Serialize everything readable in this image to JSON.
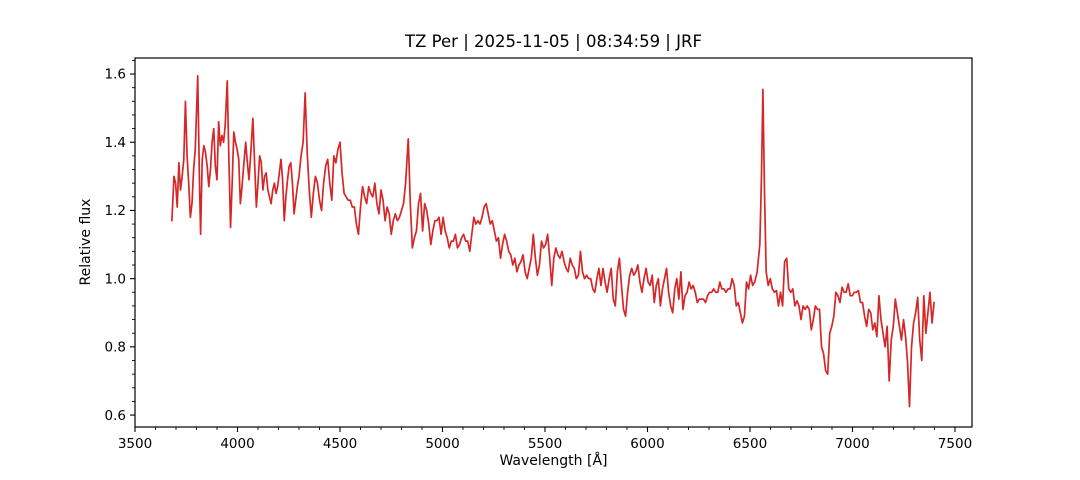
{
  "title": "TZ Per | 2025-11-05 | 08:34:59 | JRF",
  "chart_data": {
    "type": "line",
    "title": "TZ Per | 2025-11-05 | 08:34:59 | JRF",
    "xlabel": "Wavelength [Å]",
    "ylabel": "Relative flux",
    "xlim": [
      3500,
      7583
    ],
    "ylim": [
      0.565,
      1.647
    ],
    "x_major_ticks": [
      3500,
      4000,
      4500,
      5000,
      5500,
      6000,
      6500,
      7000,
      7500
    ],
    "x_tick_labels": [
      "3500",
      "4000",
      "4500",
      "5000",
      "5500",
      "6000",
      "6500",
      "7000",
      "7500"
    ],
    "x_minor_step": 100,
    "y_major_ticks": [
      0.6,
      0.8,
      1.0,
      1.2,
      1.4,
      1.6
    ],
    "y_tick_labels": [
      "0.6",
      "0.8",
      "1.0",
      "1.2",
      "1.4",
      "1.6"
    ],
    "y_minor_step": 0.04,
    "grid": false,
    "legend": null,
    "line_color": "#d62728",
    "background_color": "#ffffff",
    "spine_color": "#000000",
    "series": [
      {
        "name": "relative_flux",
        "x": [
          3680,
          3690,
          3698,
          3706,
          3714,
          3722,
          3730,
          3738,
          3746,
          3754,
          3762,
          3770,
          3778,
          3786,
          3794,
          3806,
          3814,
          3820,
          3828,
          3836,
          3844,
          3852,
          3860,
          3868,
          3876,
          3884,
          3892,
          3900,
          3908,
          3916,
          3924,
          3932,
          3940,
          3950,
          3958,
          3966,
          3974,
          3982,
          3990,
          3998,
          4006,
          4014,
          4022,
          4030,
          4040,
          4048,
          4056,
          4066,
          4075,
          4084,
          4092,
          4100,
          4108,
          4116,
          4124,
          4132,
          4140,
          4148,
          4156,
          4164,
          4172,
          4180,
          4188,
          4196,
          4204,
          4212,
          4220,
          4228,
          4236,
          4244,
          4252,
          4260,
          4268,
          4276,
          4284,
          4292,
          4300,
          4310,
          4320,
          4330,
          4340,
          4350,
          4360,
          4370,
          4380,
          4390,
          4400,
          4410,
          4420,
          4430,
          4440,
          4450,
          4460,
          4470,
          4480,
          4490,
          4500,
          4510,
          4520,
          4530,
          4540,
          4550,
          4560,
          4570,
          4580,
          4590,
          4600,
          4610,
          4620,
          4630,
          4640,
          4650,
          4660,
          4670,
          4680,
          4690,
          4700,
          4710,
          4720,
          4730,
          4740,
          4750,
          4760,
          4770,
          4780,
          4790,
          4800,
          4810,
          4820,
          4833,
          4843,
          4853,
          4863,
          4873,
          4883,
          4893,
          4903,
          4913,
          4923,
          4933,
          4943,
          4953,
          4963,
          4973,
          4983,
          4993,
          5003,
          5013,
          5023,
          5033,
          5043,
          5053,
          5063,
          5073,
          5083,
          5093,
          5103,
          5113,
          5123,
          5133,
          5143,
          5153,
          5163,
          5173,
          5183,
          5193,
          5203,
          5213,
          5223,
          5233,
          5243,
          5253,
          5263,
          5273,
          5283,
          5293,
          5303,
          5313,
          5323,
          5333,
          5343,
          5353,
          5363,
          5373,
          5383,
          5393,
          5403,
          5413,
          5423,
          5433,
          5443,
          5453,
          5463,
          5473,
          5483,
          5493,
          5503,
          5513,
          5523,
          5533,
          5543,
          5553,
          5563,
          5573,
          5583,
          5593,
          5603,
          5613,
          5623,
          5633,
          5643,
          5653,
          5663,
          5673,
          5683,
          5693,
          5703,
          5713,
          5723,
          5733,
          5743,
          5753,
          5763,
          5773,
          5783,
          5793,
          5803,
          5813,
          5823,
          5833,
          5843,
          5853,
          5863,
          5873,
          5883,
          5893,
          5903,
          5913,
          5923,
          5933,
          5943,
          5953,
          5963,
          5973,
          5983,
          5993,
          6003,
          6013,
          6023,
          6033,
          6043,
          6053,
          6063,
          6073,
          6083,
          6093,
          6103,
          6113,
          6123,
          6133,
          6143,
          6153,
          6163,
          6173,
          6183,
          6193,
          6203,
          6213,
          6223,
          6233,
          6243,
          6253,
          6263,
          6273,
          6283,
          6293,
          6303,
          6313,
          6323,
          6333,
          6343,
          6353,
          6363,
          6373,
          6383,
          6393,
          6403,
          6413,
          6423,
          6433,
          6443,
          6453,
          6463,
          6473,
          6483,
          6493,
          6503,
          6513,
          6523,
          6535,
          6548,
          6556,
          6563,
          6571,
          6579,
          6589,
          6599,
          6609,
          6619,
          6629,
          6639,
          6649,
          6659,
          6669,
          6679,
          6689,
          6699,
          6709,
          6719,
          6729,
          6739,
          6749,
          6759,
          6769,
          6779,
          6789,
          6799,
          6809,
          6819,
          6829,
          6839,
          6849,
          6859,
          6869,
          6879,
          6889,
          6899,
          6909,
          6919,
          6929,
          6939,
          6949,
          6959,
          6969,
          6979,
          6989,
          6999,
          7009,
          7019,
          7029,
          7039,
          7049,
          7059,
          7069,
          7079,
          7089,
          7099,
          7109,
          7119,
          7129,
          7139,
          7149,
          7159,
          7169,
          7179,
          7189,
          7199,
          7209,
          7219,
          7229,
          7239,
          7249,
          7259,
          7269,
          7278,
          7288,
          7298,
          7308,
          7318,
          7328,
          7338,
          7348,
          7358,
          7368,
          7378,
          7388,
          7398
        ],
        "y": [
          1.17,
          1.3,
          1.28,
          1.21,
          1.34,
          1.26,
          1.3,
          1.35,
          1.52,
          1.36,
          1.28,
          1.18,
          1.22,
          1.32,
          1.38,
          1.595,
          1.3,
          1.13,
          1.35,
          1.39,
          1.37,
          1.33,
          1.27,
          1.32,
          1.4,
          1.44,
          1.33,
          1.29,
          1.46,
          1.39,
          1.42,
          1.4,
          1.45,
          1.58,
          1.35,
          1.15,
          1.28,
          1.43,
          1.4,
          1.38,
          1.35,
          1.22,
          1.27,
          1.33,
          1.4,
          1.34,
          1.29,
          1.38,
          1.47,
          1.33,
          1.21,
          1.28,
          1.36,
          1.34,
          1.26,
          1.3,
          1.31,
          1.26,
          1.24,
          1.22,
          1.26,
          1.28,
          1.25,
          1.27,
          1.31,
          1.35,
          1.29,
          1.17,
          1.24,
          1.29,
          1.33,
          1.34,
          1.28,
          1.19,
          1.23,
          1.27,
          1.3,
          1.36,
          1.4,
          1.545,
          1.37,
          1.26,
          1.18,
          1.25,
          1.3,
          1.28,
          1.23,
          1.2,
          1.28,
          1.33,
          1.35,
          1.28,
          1.23,
          1.36,
          1.34,
          1.38,
          1.4,
          1.31,
          1.25,
          1.24,
          1.23,
          1.23,
          1.21,
          1.21,
          1.16,
          1.13,
          1.21,
          1.27,
          1.24,
          1.22,
          1.27,
          1.25,
          1.24,
          1.28,
          1.22,
          1.19,
          1.26,
          1.23,
          1.17,
          1.21,
          1.19,
          1.13,
          1.17,
          1.19,
          1.17,
          1.18,
          1.2,
          1.22,
          1.28,
          1.41,
          1.22,
          1.09,
          1.12,
          1.14,
          1.22,
          1.25,
          1.14,
          1.22,
          1.2,
          1.16,
          1.1,
          1.14,
          1.17,
          1.17,
          1.18,
          1.13,
          1.18,
          1.14,
          1.12,
          1.09,
          1.11,
          1.11,
          1.13,
          1.09,
          1.1,
          1.12,
          1.13,
          1.11,
          1.11,
          1.08,
          1.13,
          1.18,
          1.16,
          1.17,
          1.16,
          1.18,
          1.21,
          1.22,
          1.19,
          1.16,
          1.17,
          1.14,
          1.11,
          1.12,
          1.06,
          1.1,
          1.13,
          1.11,
          1.08,
          1.07,
          1.04,
          1.06,
          1.02,
          1.04,
          1.05,
          1.07,
          1.02,
          1.0,
          1.03,
          1.06,
          1.13,
          1.06,
          1.01,
          1.04,
          1.11,
          1.09,
          1.1,
          1.13,
          1.06,
          0.98,
          1.06,
          1.09,
          1.07,
          1.06,
          1.08,
          1.05,
          1.03,
          1.02,
          1.06,
          1.04,
          1.03,
          1.0,
          1.01,
          1.08,
          1.02,
          1.0,
          1.01,
          1.0,
          1.0,
          0.97,
          0.96,
          1.0,
          1.03,
          0.98,
          1.03,
          0.99,
          0.96,
          1.0,
          1.03,
          0.94,
          0.92,
          1.02,
          1.06,
          0.98,
          0.91,
          0.89,
          0.96,
          1.01,
          1.03,
          1.01,
          1.02,
          1.04,
          0.99,
          0.96,
          1.0,
          1.03,
          0.99,
          0.98,
          1.01,
          0.93,
          0.98,
          1.0,
          0.92,
          0.97,
          1.0,
          1.03,
          0.96,
          0.92,
          0.9,
          0.97,
          1.0,
          0.94,
          1.02,
          0.91,
          0.95,
          0.96,
          0.99,
          0.97,
          0.98,
          0.96,
          0.93,
          0.94,
          0.94,
          0.94,
          0.93,
          0.95,
          0.96,
          0.96,
          0.97,
          0.96,
          0.96,
          0.99,
          0.97,
          0.97,
          0.96,
          0.97,
          0.97,
          1.0,
          0.98,
          0.92,
          0.93,
          0.9,
          0.87,
          0.89,
          0.99,
          0.97,
          1.01,
          0.98,
          0.99,
          1.02,
          1.1,
          1.3,
          1.555,
          1.25,
          1.02,
          0.98,
          1.0,
          0.97,
          0.96,
          0.965,
          0.92,
          0.96,
          0.92,
          1.05,
          1.06,
          0.97,
          0.96,
          0.97,
          0.92,
          0.935,
          0.92,
          0.88,
          0.92,
          0.91,
          0.92,
          0.91,
          0.85,
          0.88,
          0.92,
          0.91,
          0.91,
          0.8,
          0.78,
          0.73,
          0.72,
          0.84,
          0.86,
          0.89,
          0.96,
          0.95,
          0.93,
          0.975,
          0.96,
          0.96,
          0.985,
          0.95,
          0.95,
          0.96,
          0.96,
          0.965,
          0.93,
          0.93,
          0.89,
          0.86,
          0.91,
          0.9,
          0.85,
          0.87,
          0.83,
          0.95,
          0.88,
          0.84,
          0.8,
          0.86,
          0.7,
          0.82,
          0.86,
          0.94,
          0.9,
          0.86,
          0.82,
          0.88,
          0.83,
          0.75,
          0.625,
          0.8,
          0.87,
          0.9,
          0.945,
          0.82,
          0.76,
          0.95,
          0.84,
          0.9,
          0.96,
          0.87,
          0.93
        ]
      }
    ]
  }
}
